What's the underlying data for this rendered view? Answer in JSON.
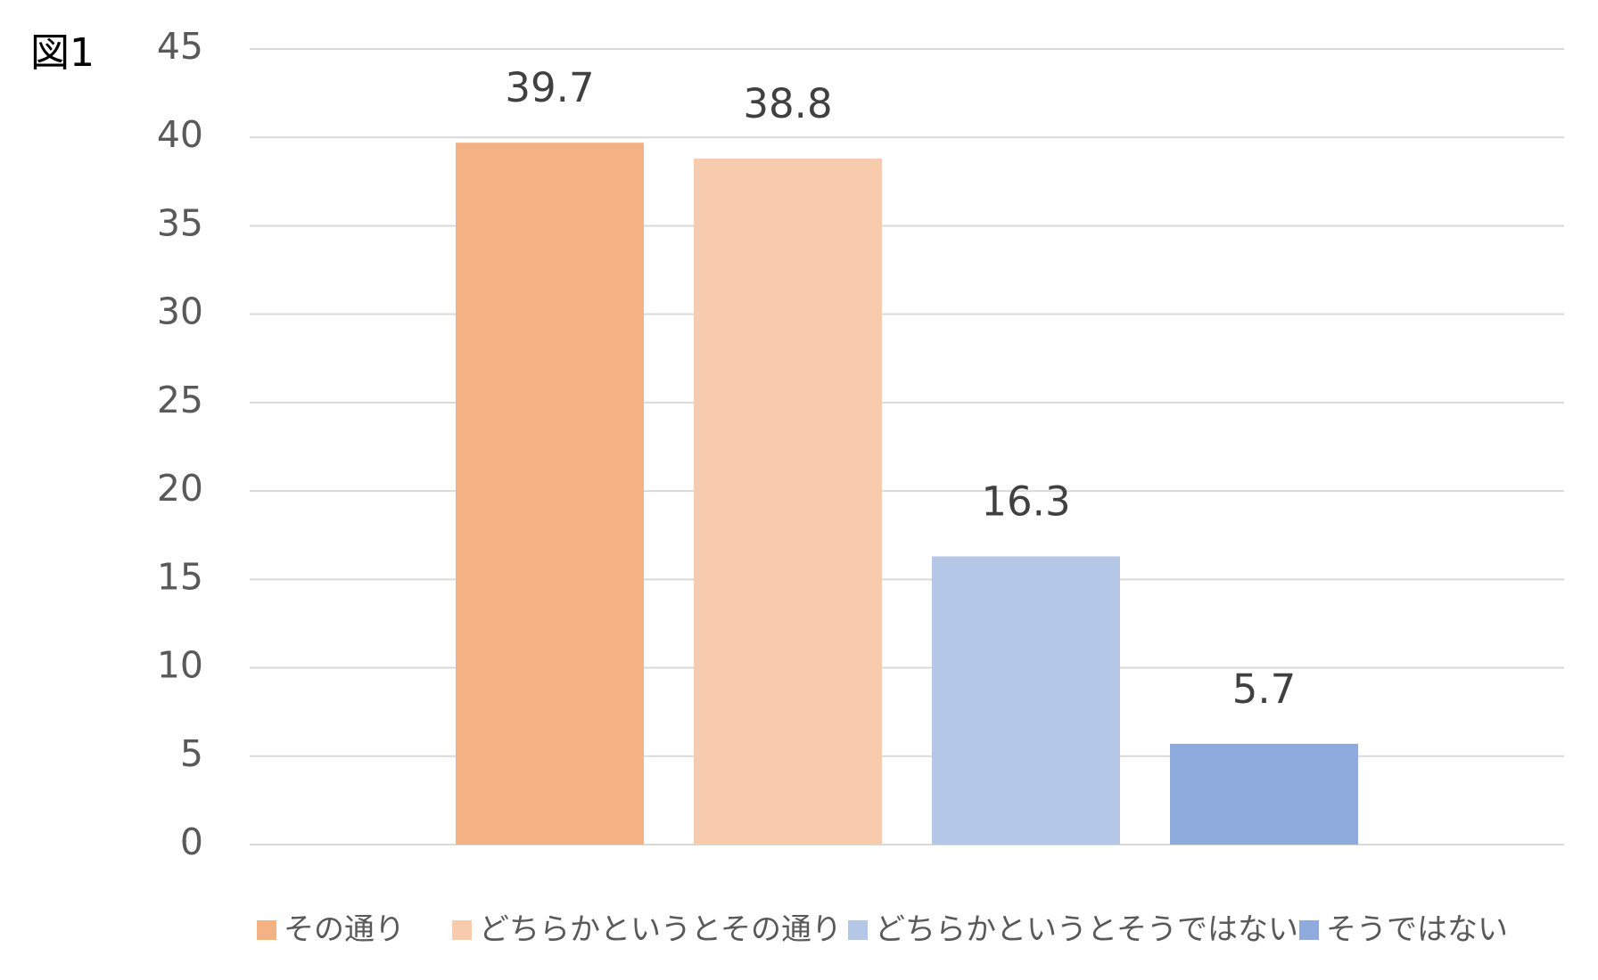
{
  "chart_data": {
    "type": "bar",
    "title": "図1",
    "categories": [
      null
    ],
    "series": [
      {
        "name": "その通り",
        "color": "#f4b183",
        "values": [
          39.7
        ]
      },
      {
        "name": "どちらかというとその通り",
        "color": "#f8cbad",
        "values": [
          38.8
        ]
      },
      {
        "name": "どちらかというとそうではない",
        "color": "#b4c7e7",
        "values": [
          16.3
        ]
      },
      {
        "name": "そうではない",
        "color": "#8faadc",
        "values": [
          5.7
        ]
      }
    ],
    "ylim": [
      0,
      45
    ],
    "yticks": [
      0,
      5,
      10,
      15,
      20,
      25,
      30,
      35,
      40,
      45
    ],
    "grid": true,
    "legend": "bottom"
  }
}
